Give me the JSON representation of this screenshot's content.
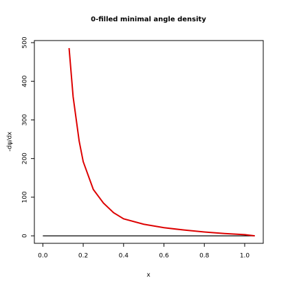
{
  "chart_data": {
    "type": "line",
    "title": "0-filled minimal angle density",
    "xlabel": "x",
    "ylabel": "-dψ/dx",
    "series": [
      {
        "color": "#000000",
        "x": [
          0.0,
          1.05
        ],
        "values": [
          0,
          0
        ]
      },
      {
        "color": "#dd0000",
        "x": [
          0.13,
          0.15,
          0.18,
          0.2,
          0.25,
          0.3,
          0.35,
          0.4,
          0.5,
          0.6,
          0.7,
          0.8,
          0.9,
          1.0,
          1.05
        ],
        "values": [
          486,
          360,
          245,
          192,
          120,
          85,
          60,
          44,
          30,
          21,
          15,
          10,
          6,
          3,
          0
        ]
      }
    ],
    "xlim": [
      -0.042,
      1.092
    ],
    "ylim": [
      -19.4,
      505.4
    ],
    "xticks": [
      {
        "value": 0,
        "label": "0.0"
      },
      0.2,
      0.4,
      0.6,
      0.8,
      {
        "value": 1,
        "label": "1.0"
      }
    ],
    "yticks": [
      0,
      100,
      200,
      300,
      400,
      500
    ]
  }
}
